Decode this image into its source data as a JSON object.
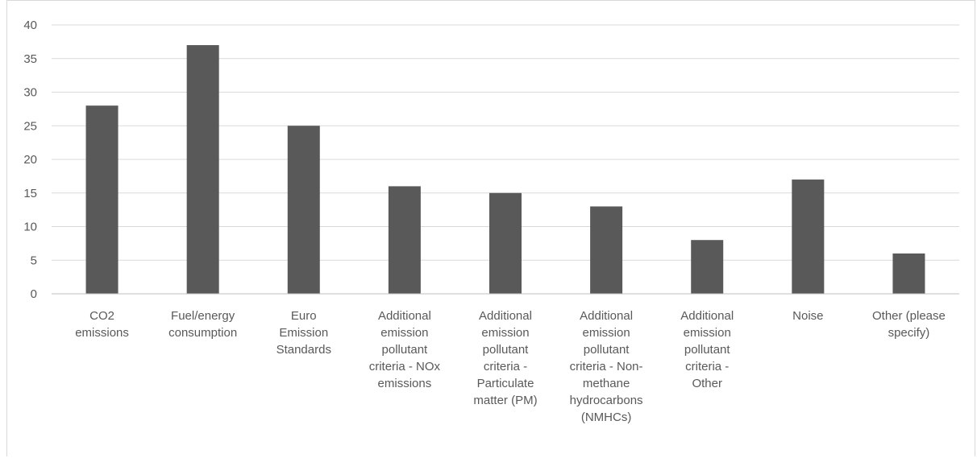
{
  "chart_data": {
    "type": "bar",
    "title": "",
    "xlabel": "",
    "ylabel": "",
    "ylim": [
      0,
      40
    ],
    "yticks": [
      0,
      5,
      10,
      15,
      20,
      25,
      30,
      35,
      40
    ],
    "grid": true,
    "legend": "none",
    "bar_color": "#595959",
    "categories": [
      [
        "CO2",
        "emissions"
      ],
      [
        "Fuel/energy",
        "consumption"
      ],
      [
        "Euro",
        "Emission",
        "Standards"
      ],
      [
        "Additional",
        "emission",
        "pollutant",
        "criteria - NOx",
        "emissions"
      ],
      [
        "Additional",
        "emission",
        "pollutant",
        "criteria -",
        "Particulate",
        "matter (PM)"
      ],
      [
        "Additional",
        "emission",
        "pollutant",
        "criteria - Non-",
        "methane",
        "hydrocarbons",
        "(NMHCs)"
      ],
      [
        "Additional",
        "emission",
        "pollutant",
        "criteria -",
        "Other"
      ],
      [
        "Noise"
      ],
      [
        "Other (please",
        "specify)"
      ]
    ],
    "values": [
      28,
      37,
      25,
      16,
      15,
      13,
      8,
      17,
      6
    ]
  }
}
